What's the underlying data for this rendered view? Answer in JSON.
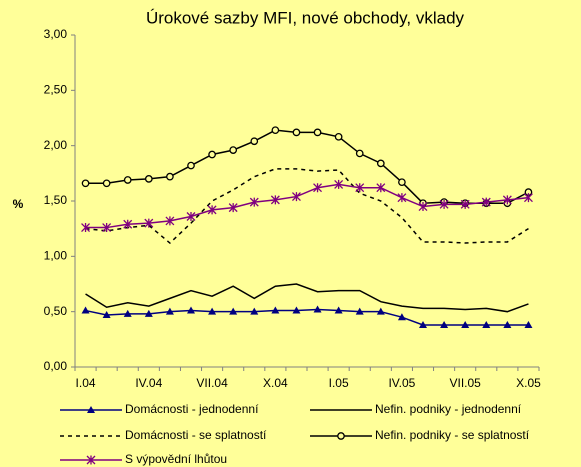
{
  "chart_data": {
    "type": "line",
    "title": "Úrokové sazby MFI, nové obchody, vklady",
    "y_label": "%",
    "categories": [
      "I.04",
      null,
      null,
      "IV.04",
      null,
      null,
      "VII.04",
      null,
      null,
      "X.04",
      null,
      null,
      "I.05",
      null,
      null,
      "IV.05",
      null,
      null,
      "VII.05",
      null,
      null,
      "X.05"
    ],
    "ylim": [
      0,
      3
    ],
    "yticks": [
      {
        "value": 0,
        "label": "0,00"
      },
      {
        "value": 0.5,
        "label": "0,50"
      },
      {
        "value": 1,
        "label": "1,00"
      },
      {
        "value": 1.5,
        "label": "1,50"
      },
      {
        "value": 2,
        "label": "2,00"
      },
      {
        "value": 2.5,
        "label": "2,50"
      },
      {
        "value": 3,
        "label": "3,00"
      }
    ],
    "series": [
      {
        "name": "Domácnosti - jednodenní",
        "color": "#000080",
        "marker": "triangle",
        "dashed": false,
        "values": [
          0.51,
          0.47,
          0.48,
          0.48,
          0.5,
          0.51,
          0.5,
          0.5,
          0.5,
          0.51,
          0.51,
          0.52,
          0.51,
          0.5,
          0.5,
          0.45,
          0.38,
          0.38,
          0.38,
          0.38,
          0.38,
          0.38
        ]
      },
      {
        "name": "Nefin. podniky - jednodenní",
        "color": "#000000",
        "marker": "none",
        "dashed": false,
        "values": [
          0.66,
          0.54,
          0.58,
          0.55,
          0.62,
          0.69,
          0.64,
          0.73,
          0.62,
          0.73,
          0.75,
          0.68,
          0.69,
          0.69,
          0.59,
          0.55,
          0.53,
          0.53,
          0.52,
          0.53,
          0.5,
          0.57
        ]
      },
      {
        "name": "Domácnosti - se splatností",
        "color": "#000000",
        "marker": "none",
        "dashed": true,
        "values": [
          1.25,
          1.23,
          1.26,
          1.28,
          1.12,
          1.3,
          1.5,
          1.6,
          1.72,
          1.79,
          1.79,
          1.77,
          1.78,
          1.57,
          1.5,
          1.35,
          1.13,
          1.13,
          1.12,
          1.13,
          1.13,
          1.25
        ]
      },
      {
        "name": "Nefin. podniky - se splatností",
        "color": "#000000",
        "marker": "circle",
        "dashed": false,
        "values": [
          1.66,
          1.66,
          1.69,
          1.7,
          1.72,
          1.82,
          1.92,
          1.96,
          2.04,
          2.14,
          2.12,
          2.12,
          2.08,
          1.93,
          1.84,
          1.67,
          1.48,
          1.49,
          1.48,
          1.48,
          1.48,
          1.58
        ]
      },
      {
        "name": "S výpovědní lhůtou",
        "color": "#800080",
        "marker": "star",
        "dashed": false,
        "values": [
          1.26,
          1.26,
          1.29,
          1.3,
          1.32,
          1.36,
          1.42,
          1.44,
          1.49,
          1.51,
          1.54,
          1.62,
          1.65,
          1.62,
          1.62,
          1.53,
          1.45,
          1.47,
          1.47,
          1.49,
          1.51,
          1.53
        ]
      }
    ]
  }
}
